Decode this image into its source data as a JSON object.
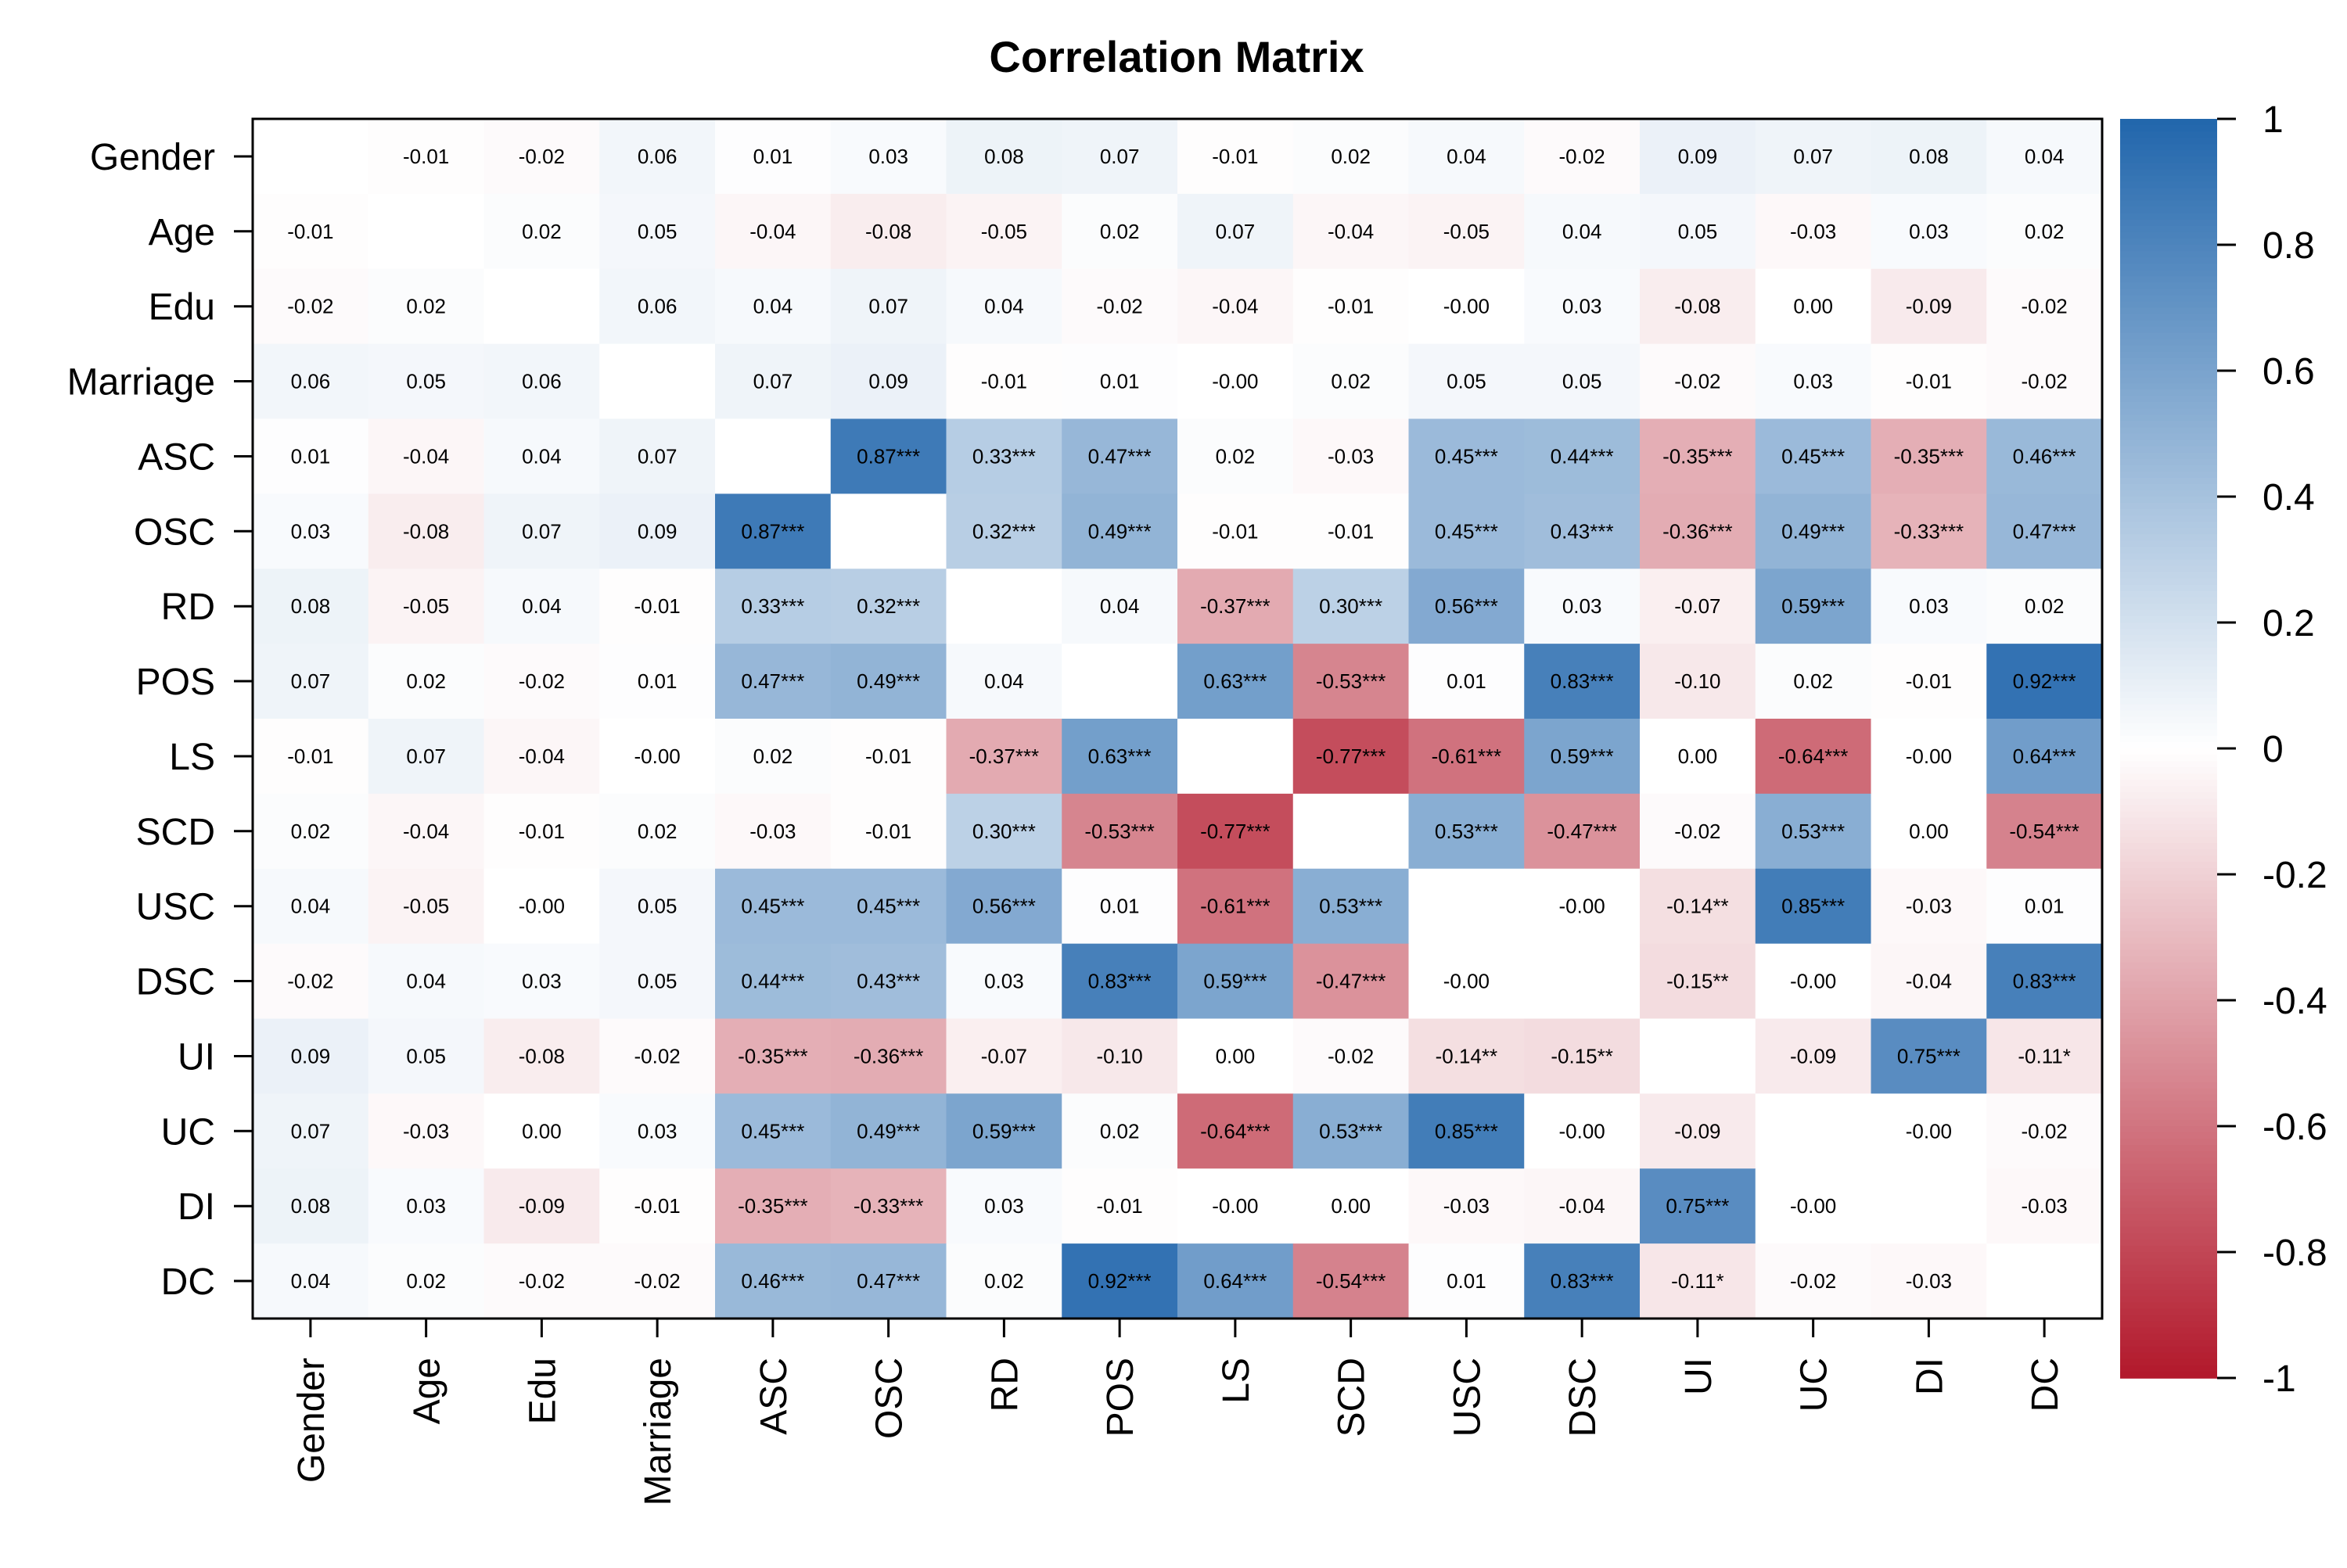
{
  "chart_data": {
    "type": "heatmap",
    "title": "Correlation Matrix",
    "variables": [
      "Gender",
      "Age",
      "Edu",
      "Marriage",
      "ASC",
      "OSC",
      "RD",
      "POS",
      "LS",
      "SCD",
      "USC",
      "DSC",
      "UI",
      "UC",
      "DI",
      "DC"
    ],
    "labels": [
      [
        "",
        "-0.01",
        "-0.02",
        "0.06",
        "0.01",
        "0.03",
        "0.08",
        "0.07",
        "-0.01",
        "0.02",
        "0.04",
        "-0.02",
        "0.09",
        "0.07",
        "0.08",
        "0.04"
      ],
      [
        "-0.01",
        "",
        "0.02",
        "0.05",
        "-0.04",
        "-0.08",
        "-0.05",
        "0.02",
        "0.07",
        "-0.04",
        "-0.05",
        "0.04",
        "0.05",
        "-0.03",
        "0.03",
        "0.02"
      ],
      [
        "-0.02",
        "0.02",
        "",
        "0.06",
        "0.04",
        "0.07",
        "0.04",
        "-0.02",
        "-0.04",
        "-0.01",
        "-0.00",
        "0.03",
        "-0.08",
        "0.00",
        "-0.09",
        "-0.02"
      ],
      [
        "0.06",
        "0.05",
        "0.06",
        "",
        "0.07",
        "0.09",
        "-0.01",
        "0.01",
        "-0.00",
        "0.02",
        "0.05",
        "0.05",
        "-0.02",
        "0.03",
        "-0.01",
        "-0.02"
      ],
      [
        "0.01",
        "-0.04",
        "0.04",
        "0.07",
        "",
        "0.87***",
        "0.33***",
        "0.47***",
        "0.02",
        "-0.03",
        "0.45***",
        "0.44***",
        "-0.35***",
        "0.45***",
        "-0.35***",
        "0.46***"
      ],
      [
        "0.03",
        "-0.08",
        "0.07",
        "0.09",
        "0.87***",
        "",
        "0.32***",
        "0.49***",
        "-0.01",
        "-0.01",
        "0.45***",
        "0.43***",
        "-0.36***",
        "0.49***",
        "-0.33***",
        "0.47***"
      ],
      [
        "0.08",
        "-0.05",
        "0.04",
        "-0.01",
        "0.33***",
        "0.32***",
        "",
        "0.04",
        "-0.37***",
        "0.30***",
        "0.56***",
        "0.03",
        "-0.07",
        "0.59***",
        "0.03",
        "0.02"
      ],
      [
        "0.07",
        "0.02",
        "-0.02",
        "0.01",
        "0.47***",
        "0.49***",
        "0.04",
        "",
        "0.63***",
        "-0.53***",
        "0.01",
        "0.83***",
        "-0.10",
        "0.02",
        "-0.01",
        "0.92***"
      ],
      [
        "-0.01",
        "0.07",
        "-0.04",
        "-0.00",
        "0.02",
        "-0.01",
        "-0.37***",
        "0.63***",
        "",
        "-0.77***",
        "-0.61***",
        "0.59***",
        "0.00",
        "-0.64***",
        "-0.00",
        "0.64***"
      ],
      [
        "0.02",
        "-0.04",
        "-0.01",
        "0.02",
        "-0.03",
        "-0.01",
        "0.30***",
        "-0.53***",
        "-0.77***",
        "",
        "0.53***",
        "-0.47***",
        "-0.02",
        "0.53***",
        "0.00",
        "-0.54***"
      ],
      [
        "0.04",
        "-0.05",
        "-0.00",
        "0.05",
        "0.45***",
        "0.45***",
        "0.56***",
        "0.01",
        "-0.61***",
        "0.53***",
        "",
        "-0.00",
        "-0.14**",
        "0.85***",
        "-0.03",
        "0.01"
      ],
      [
        "-0.02",
        "0.04",
        "0.03",
        "0.05",
        "0.44***",
        "0.43***",
        "0.03",
        "0.83***",
        "0.59***",
        "-0.47***",
        "-0.00",
        "",
        "-0.15**",
        "-0.00",
        "-0.04",
        "0.83***"
      ],
      [
        "0.09",
        "0.05",
        "-0.08",
        "-0.02",
        "-0.35***",
        "-0.36***",
        "-0.07",
        "-0.10",
        "0.00",
        "-0.02",
        "-0.14**",
        "-0.15**",
        "",
        "-0.09",
        "0.75***",
        "-0.11*"
      ],
      [
        "0.07",
        "-0.03",
        "0.00",
        "0.03",
        "0.45***",
        "0.49***",
        "0.59***",
        "0.02",
        "-0.64***",
        "0.53***",
        "0.85***",
        "-0.00",
        "-0.09",
        "",
        "-0.00",
        "-0.02"
      ],
      [
        "0.08",
        "0.03",
        "-0.09",
        "-0.01",
        "-0.35***",
        "-0.33***",
        "0.03",
        "-0.01",
        "-0.00",
        "0.00",
        "-0.03",
        "-0.04",
        "0.75***",
        "-0.00",
        "",
        "-0.03"
      ],
      [
        "0.04",
        "0.02",
        "-0.02",
        "-0.02",
        "0.46***",
        "0.47***",
        "0.02",
        "0.92***",
        "0.64***",
        "-0.54***",
        "0.01",
        "0.83***",
        "-0.11*",
        "-0.02",
        "-0.03",
        ""
      ]
    ],
    "diagonal": "blank",
    "scale": {
      "range": [
        -1,
        1
      ],
      "ticks": [
        "1",
        "0.8",
        "0.6",
        "0.4",
        "0.2",
        "0",
        "-0.2",
        "-0.4",
        "-0.6",
        "-0.8",
        "-1"
      ],
      "colors": {
        "negative": "#b2182b",
        "zero": "#ffffff",
        "positive": "#2166ac"
      }
    },
    "legend_placement": "right",
    "grid": false
  }
}
